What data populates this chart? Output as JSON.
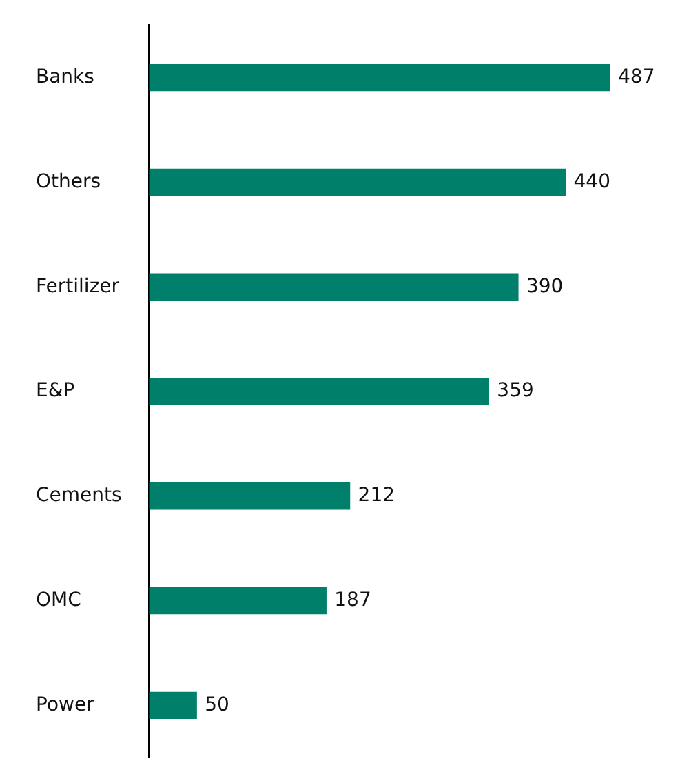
{
  "chart_data": {
    "type": "bar",
    "orientation": "horizontal",
    "categories": [
      "Banks",
      "Others",
      "Fertilizer",
      "E&P",
      "Cements",
      "OMC",
      "Power"
    ],
    "values": [
      487,
      440,
      390,
      359,
      212,
      187,
      50
    ],
    "color": "#00806a",
    "data_labels": true,
    "legend": false,
    "tick_labels": "y"
  }
}
